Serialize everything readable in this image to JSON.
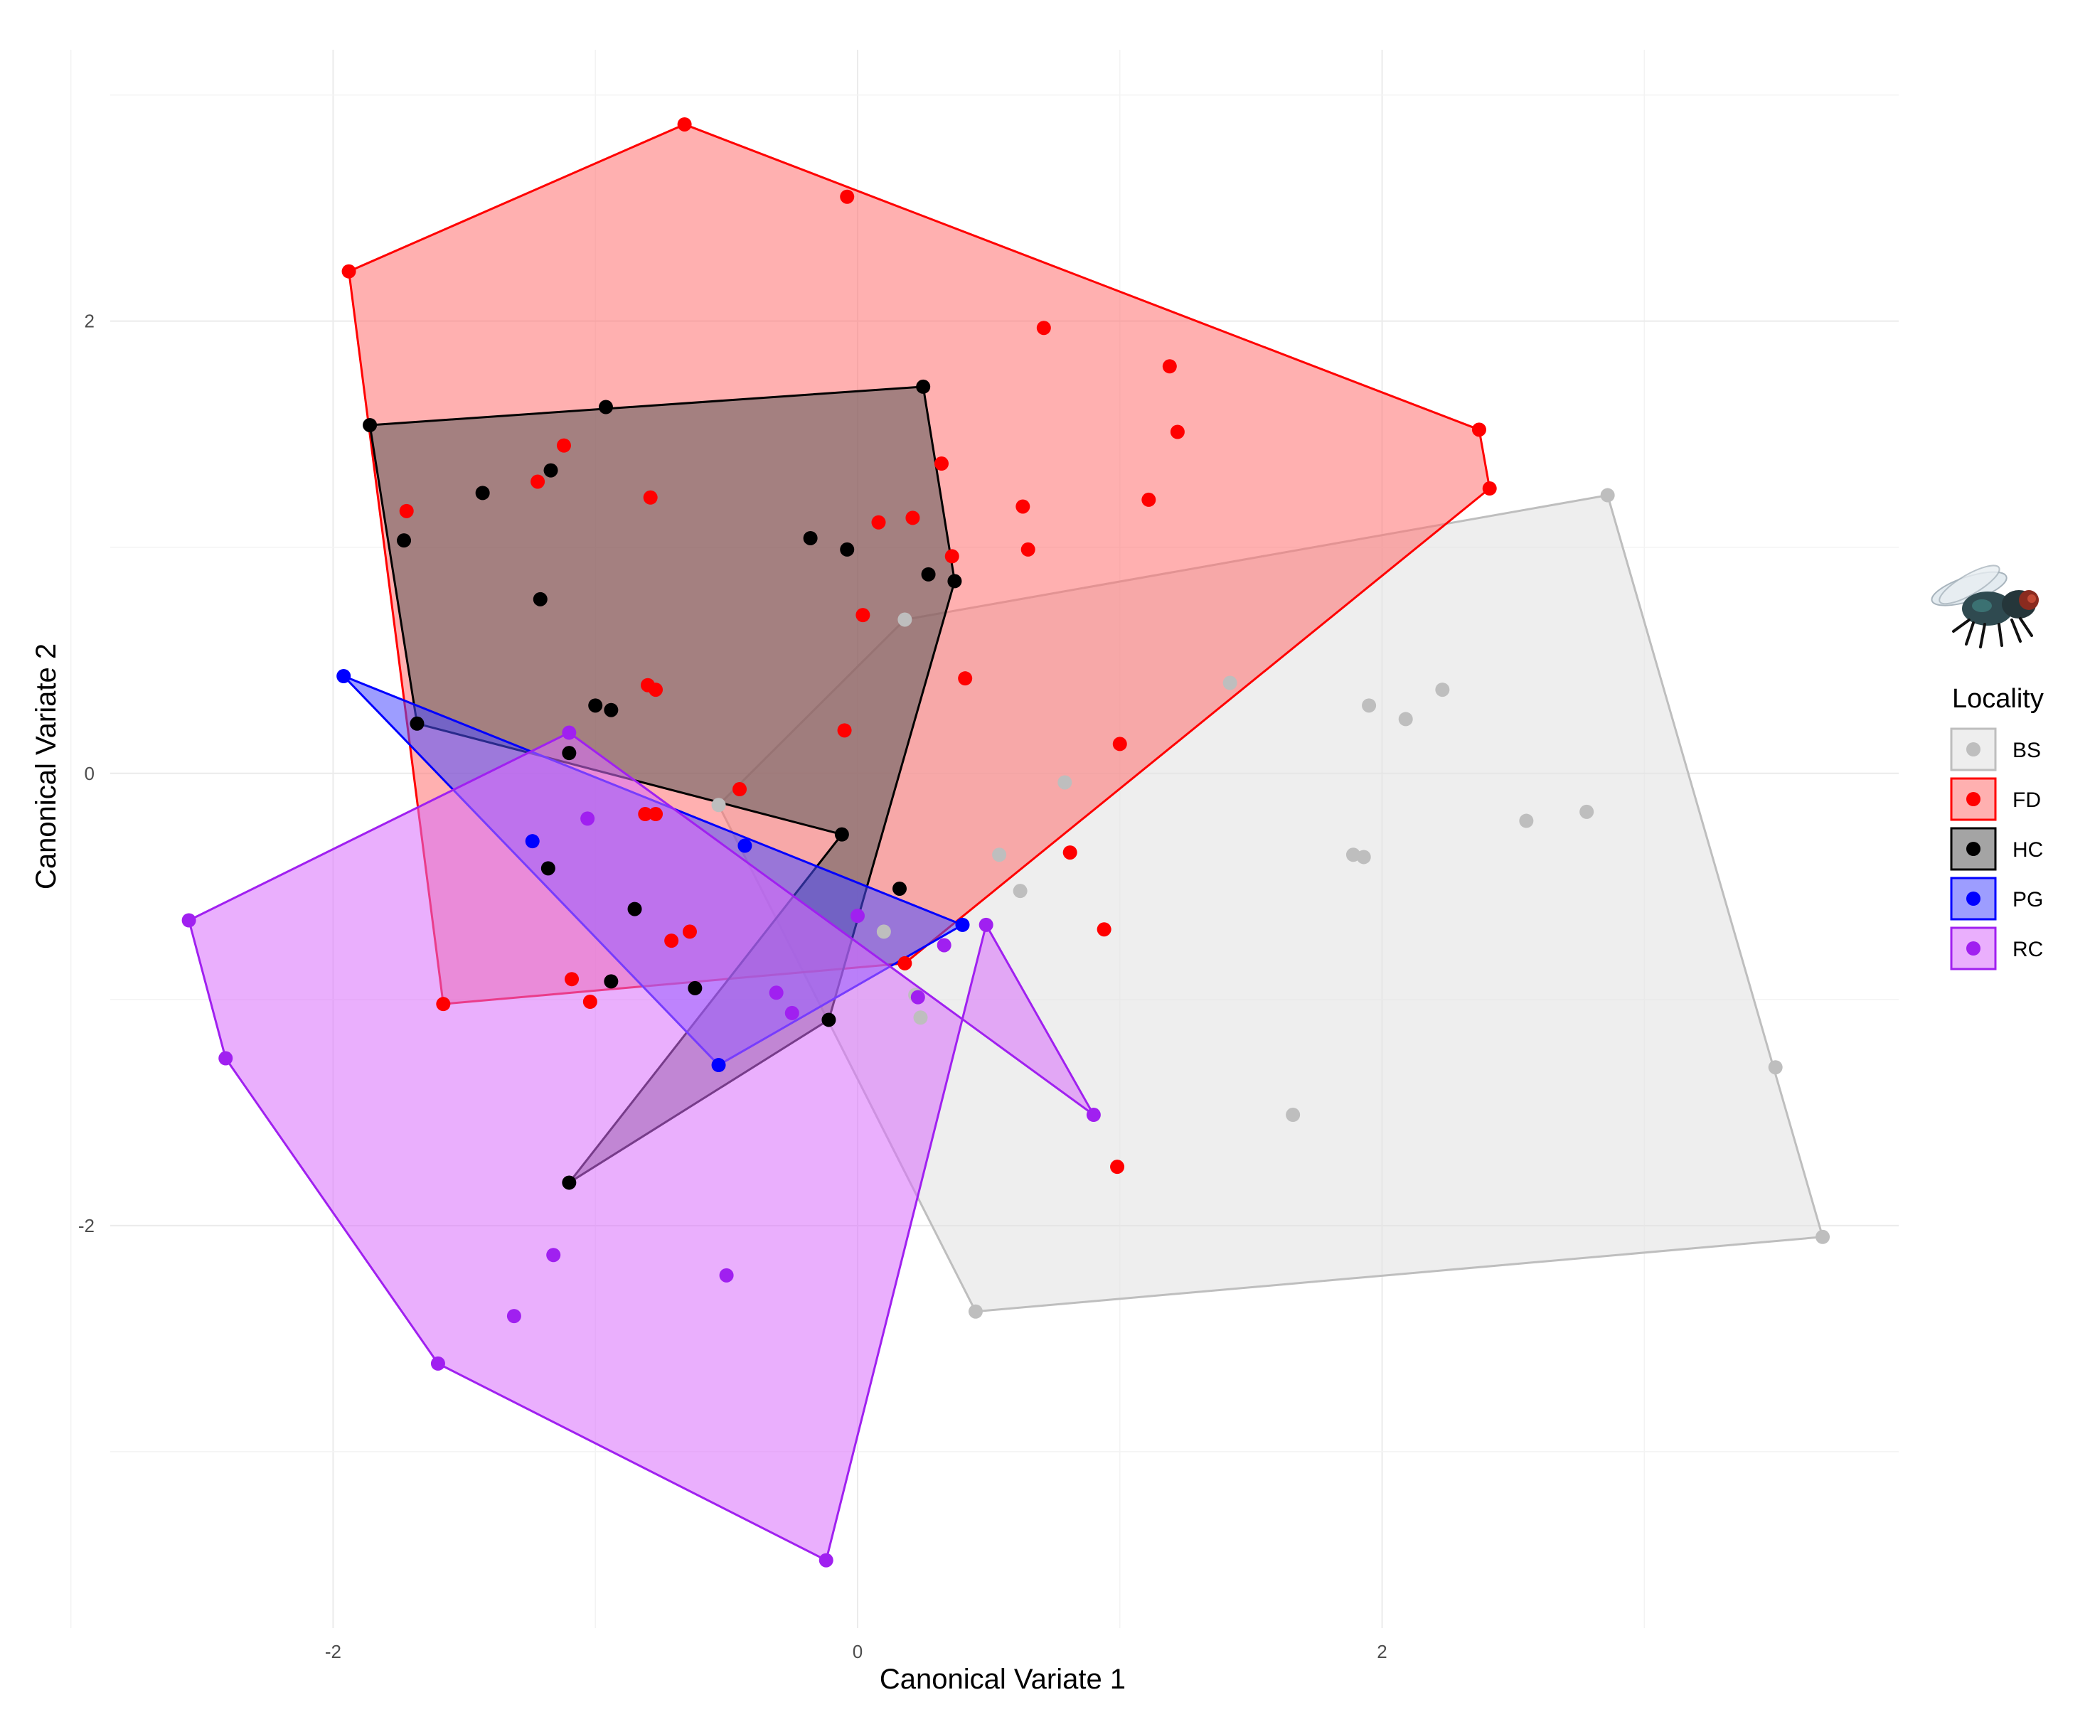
{
  "chart_data": {
    "type": "scatter",
    "title": "",
    "xlabel": "Canonical Variate 1",
    "ylabel": "Canonical Variate 2",
    "xlim": [
      -2.85,
      3.97
    ],
    "ylim": [
      -3.78,
      3.2
    ],
    "x_ticks": [
      -2,
      0,
      2
    ],
    "x_tick_labels": [
      "-2",
      "0",
      "2"
    ],
    "y_ticks": [
      -2,
      0,
      2
    ],
    "y_tick_labels": [
      "-2",
      "0",
      "2"
    ],
    "grid": true,
    "legend": {
      "title": "Locality",
      "position": "right"
    },
    "hulls": "convex hull polygon per group",
    "series": [
      {
        "name": "BS",
        "color": "#bebebe",
        "fill": "#e0e0e0",
        "points": [
          [
            0.18,
            0.68
          ],
          [
            1.42,
            0.4
          ],
          [
            1.95,
            0.3
          ],
          [
            2.09,
            0.24
          ],
          [
            2.23,
            0.37
          ],
          [
            2.86,
            1.23
          ],
          [
            2.78,
            -0.17
          ],
          [
            2.55,
            -0.21
          ],
          [
            1.89,
            -0.36
          ],
          [
            1.93,
            -0.37
          ],
          [
            0.79,
            -0.04
          ],
          [
            0.54,
            -0.36
          ],
          [
            0.62,
            -0.52
          ],
          [
            0.1,
            -0.7
          ],
          [
            1.66,
            -1.51
          ],
          [
            3.5,
            -1.3
          ],
          [
            3.68,
            -2.05
          ],
          [
            0.45,
            -2.38
          ],
          [
            -0.53,
            -0.14
          ],
          [
            0.22,
            -0.98
          ],
          [
            0.24,
            -1.08
          ]
        ]
      },
      {
        "name": "FD",
        "color": "#ff0000",
        "fill": "#ff7070",
        "points": [
          [
            -1.94,
            2.22
          ],
          [
            -0.66,
            2.87
          ],
          [
            -0.04,
            2.55
          ],
          [
            0.71,
            1.97
          ],
          [
            1.19,
            1.8
          ],
          [
            1.22,
            1.51
          ],
          [
            2.37,
            1.52
          ],
          [
            2.41,
            1.26
          ],
          [
            1.11,
            1.21
          ],
          [
            0.63,
            1.18
          ],
          [
            0.65,
            0.99
          ],
          [
            0.32,
            1.37
          ],
          [
            0.21,
            1.13
          ],
          [
            0.08,
            1.11
          ],
          [
            0.36,
            0.96
          ],
          [
            0.41,
            0.42
          ],
          [
            0.02,
            0.7
          ],
          [
            -0.05,
            0.19
          ],
          [
            1.0,
            0.13
          ],
          [
            -0.45,
            -0.07
          ],
          [
            -0.79,
            1.22
          ],
          [
            -1.12,
            1.45
          ],
          [
            -1.22,
            1.29
          ],
          [
            -1.72,
            1.16
          ],
          [
            -0.8,
            0.39
          ],
          [
            -0.77,
            0.37
          ],
          [
            -0.77,
            -0.18
          ],
          [
            -0.81,
            -0.18
          ],
          [
            -0.71,
            -0.74
          ],
          [
            -0.64,
            -0.7
          ],
          [
            -1.02,
            -1.01
          ],
          [
            -1.09,
            -0.91
          ],
          [
            0.18,
            -0.84
          ],
          [
            0.81,
            -0.35
          ],
          [
            0.94,
            -0.69
          ],
          [
            0.99,
            -1.74
          ],
          [
            -1.58,
            -1.02
          ]
        ]
      },
      {
        "name": "HC",
        "color": "#000000",
        "fill": "#5a5a5a",
        "points": [
          [
            -1.86,
            1.54
          ],
          [
            -0.96,
            1.62
          ],
          [
            0.25,
            1.71
          ],
          [
            -1.43,
            1.24
          ],
          [
            -1.17,
            1.34
          ],
          [
            -1.73,
            1.03
          ],
          [
            -1.21,
            0.77
          ],
          [
            -0.18,
            1.04
          ],
          [
            -0.04,
            0.99
          ],
          [
            0.27,
            0.88
          ],
          [
            0.37,
            0.85
          ],
          [
            -1.0,
            0.3
          ],
          [
            -0.94,
            0.28
          ],
          [
            -1.1,
            0.09
          ],
          [
            -1.68,
            0.22
          ],
          [
            -0.06,
            -0.27
          ],
          [
            -1.18,
            -0.42
          ],
          [
            -0.85,
            -0.6
          ],
          [
            -0.62,
            -0.95
          ],
          [
            -0.94,
            -0.92
          ],
          [
            0.16,
            -0.51
          ],
          [
            -0.11,
            -1.09
          ],
          [
            -1.1,
            -1.81
          ]
        ]
      },
      {
        "name": "PG",
        "color": "#0000ff",
        "fill": "#4d4dff",
        "points": [
          [
            -1.96,
            0.43
          ],
          [
            -0.43,
            -0.32
          ],
          [
            -0.53,
            -1.29
          ],
          [
            0.4,
            -0.67
          ],
          [
            -1.24,
            -0.3
          ]
        ]
      },
      {
        "name": "RC",
        "color": "#a020f0",
        "fill": "#d96dfb",
        "points": [
          [
            -2.55,
            -0.65
          ],
          [
            -2.41,
            -1.26
          ],
          [
            -1.6,
            -2.61
          ],
          [
            -0.12,
            -3.48
          ],
          [
            0.9,
            -1.51
          ],
          [
            0.49,
            -0.67
          ],
          [
            -1.1,
            0.18
          ],
          [
            -1.03,
            -0.2
          ],
          [
            0.33,
            -0.76
          ],
          [
            0.0,
            -0.63
          ],
          [
            -0.25,
            -1.06
          ],
          [
            -1.16,
            -2.13
          ],
          [
            -1.31,
            -2.4
          ],
          [
            -0.5,
            -2.22
          ],
          [
            0.23,
            -0.99
          ],
          [
            -0.31,
            -0.97
          ]
        ]
      }
    ],
    "hull_indices": {
      "BS": [
        0,
        5,
        16,
        17,
        18
      ],
      "FD": [
        0,
        1,
        6,
        7,
        32,
        36
      ],
      "HC": [
        0,
        2,
        10,
        21,
        22,
        15,
        14
      ],
      "PG": [
        0,
        3,
        2
      ],
      "RC": [
        0,
        6,
        4,
        5,
        3,
        2,
        1
      ]
    }
  },
  "legend_icon": "housefly-icon"
}
